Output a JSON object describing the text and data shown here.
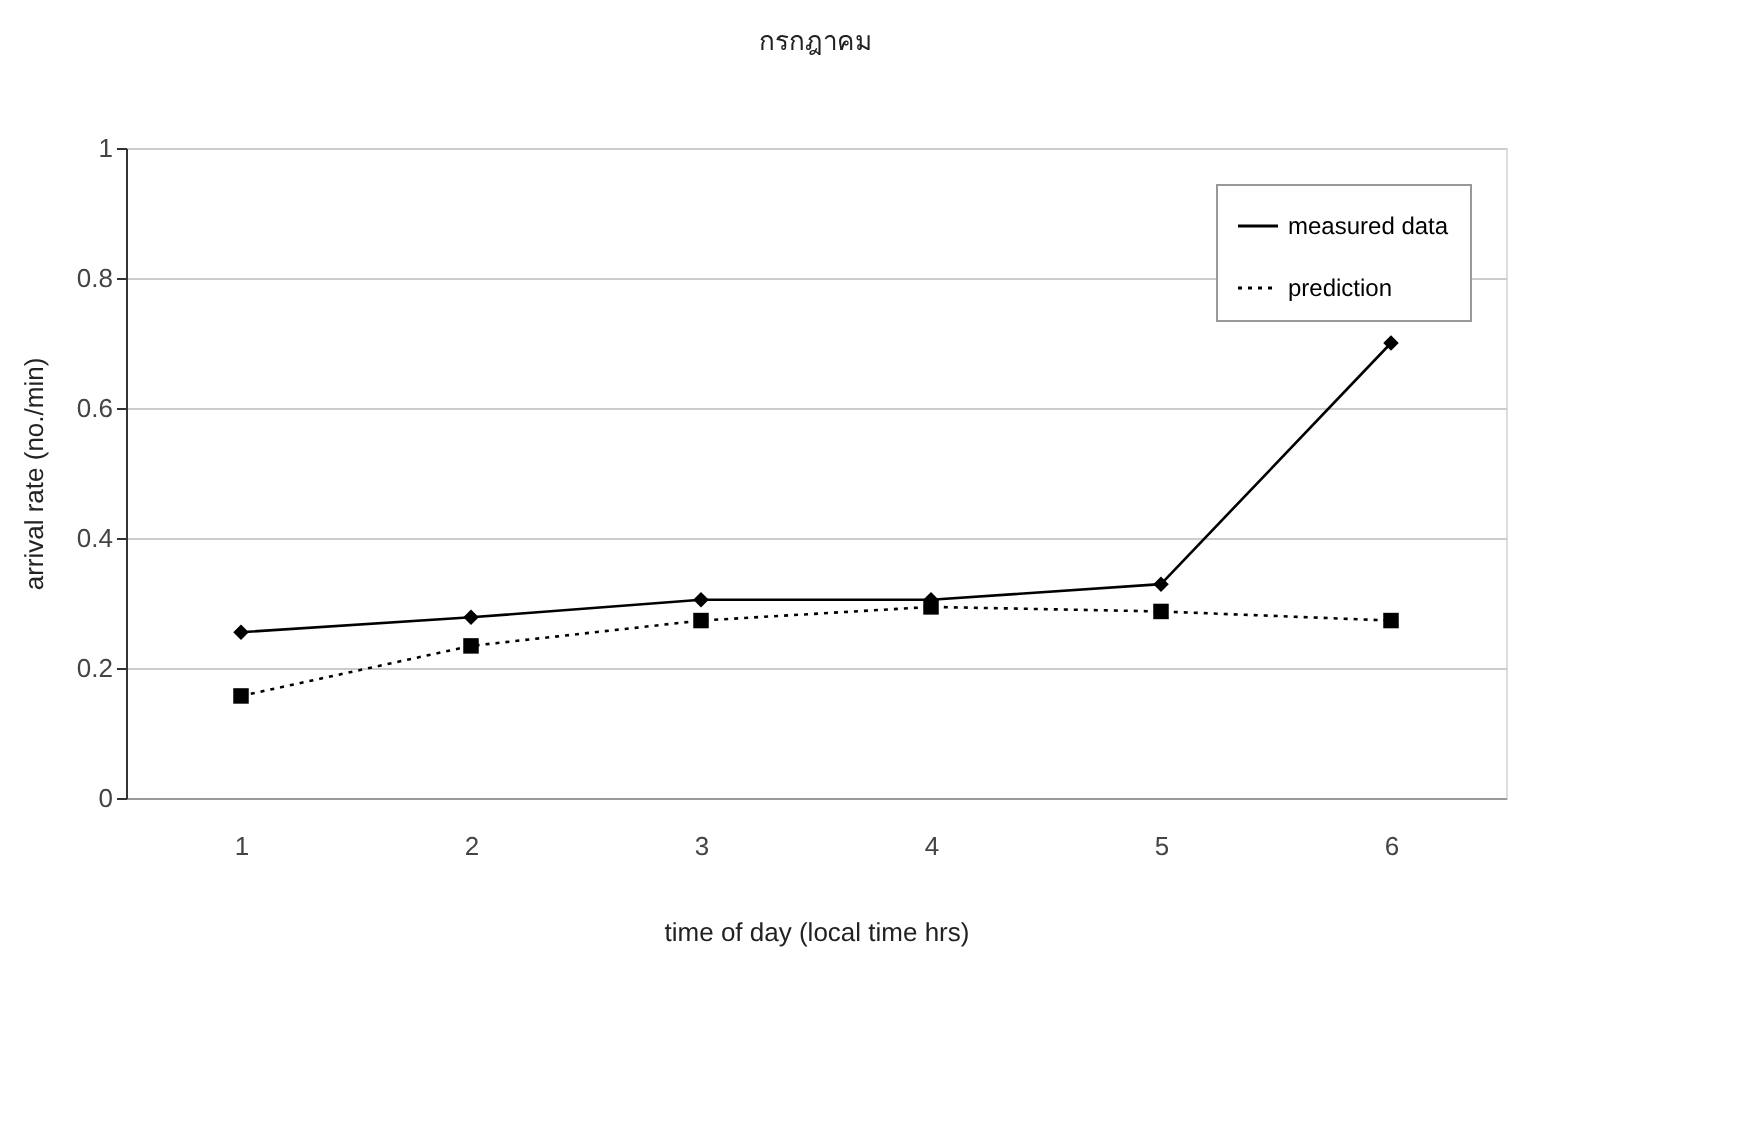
{
  "chart_data": {
    "type": "line",
    "title": "กรกฎาคม",
    "xlabel": "time of day (local time hrs)",
    "ylabel": "arrival rate (no./min)",
    "categories": [
      "1",
      "2",
      "3",
      "4",
      "5",
      "6"
    ],
    "series": [
      {
        "name": "measured data",
        "color": "#000000",
        "marker": "diamond",
        "line_style": "solid",
        "values": [
          0.255,
          0.278,
          0.305,
          0.305,
          0.329,
          0.7
        ]
      },
      {
        "name": "prediction",
        "color": "#000000",
        "marker": "square",
        "line_style": "dotted",
        "values": [
          0.157,
          0.234,
          0.273,
          0.294,
          0.287,
          0.273
        ]
      }
    ],
    "ylim": [
      0,
      1
    ],
    "yticks": [
      0,
      0.2,
      0.4,
      0.6,
      0.8,
      1
    ],
    "grid": "y",
    "legend": "top right"
  }
}
